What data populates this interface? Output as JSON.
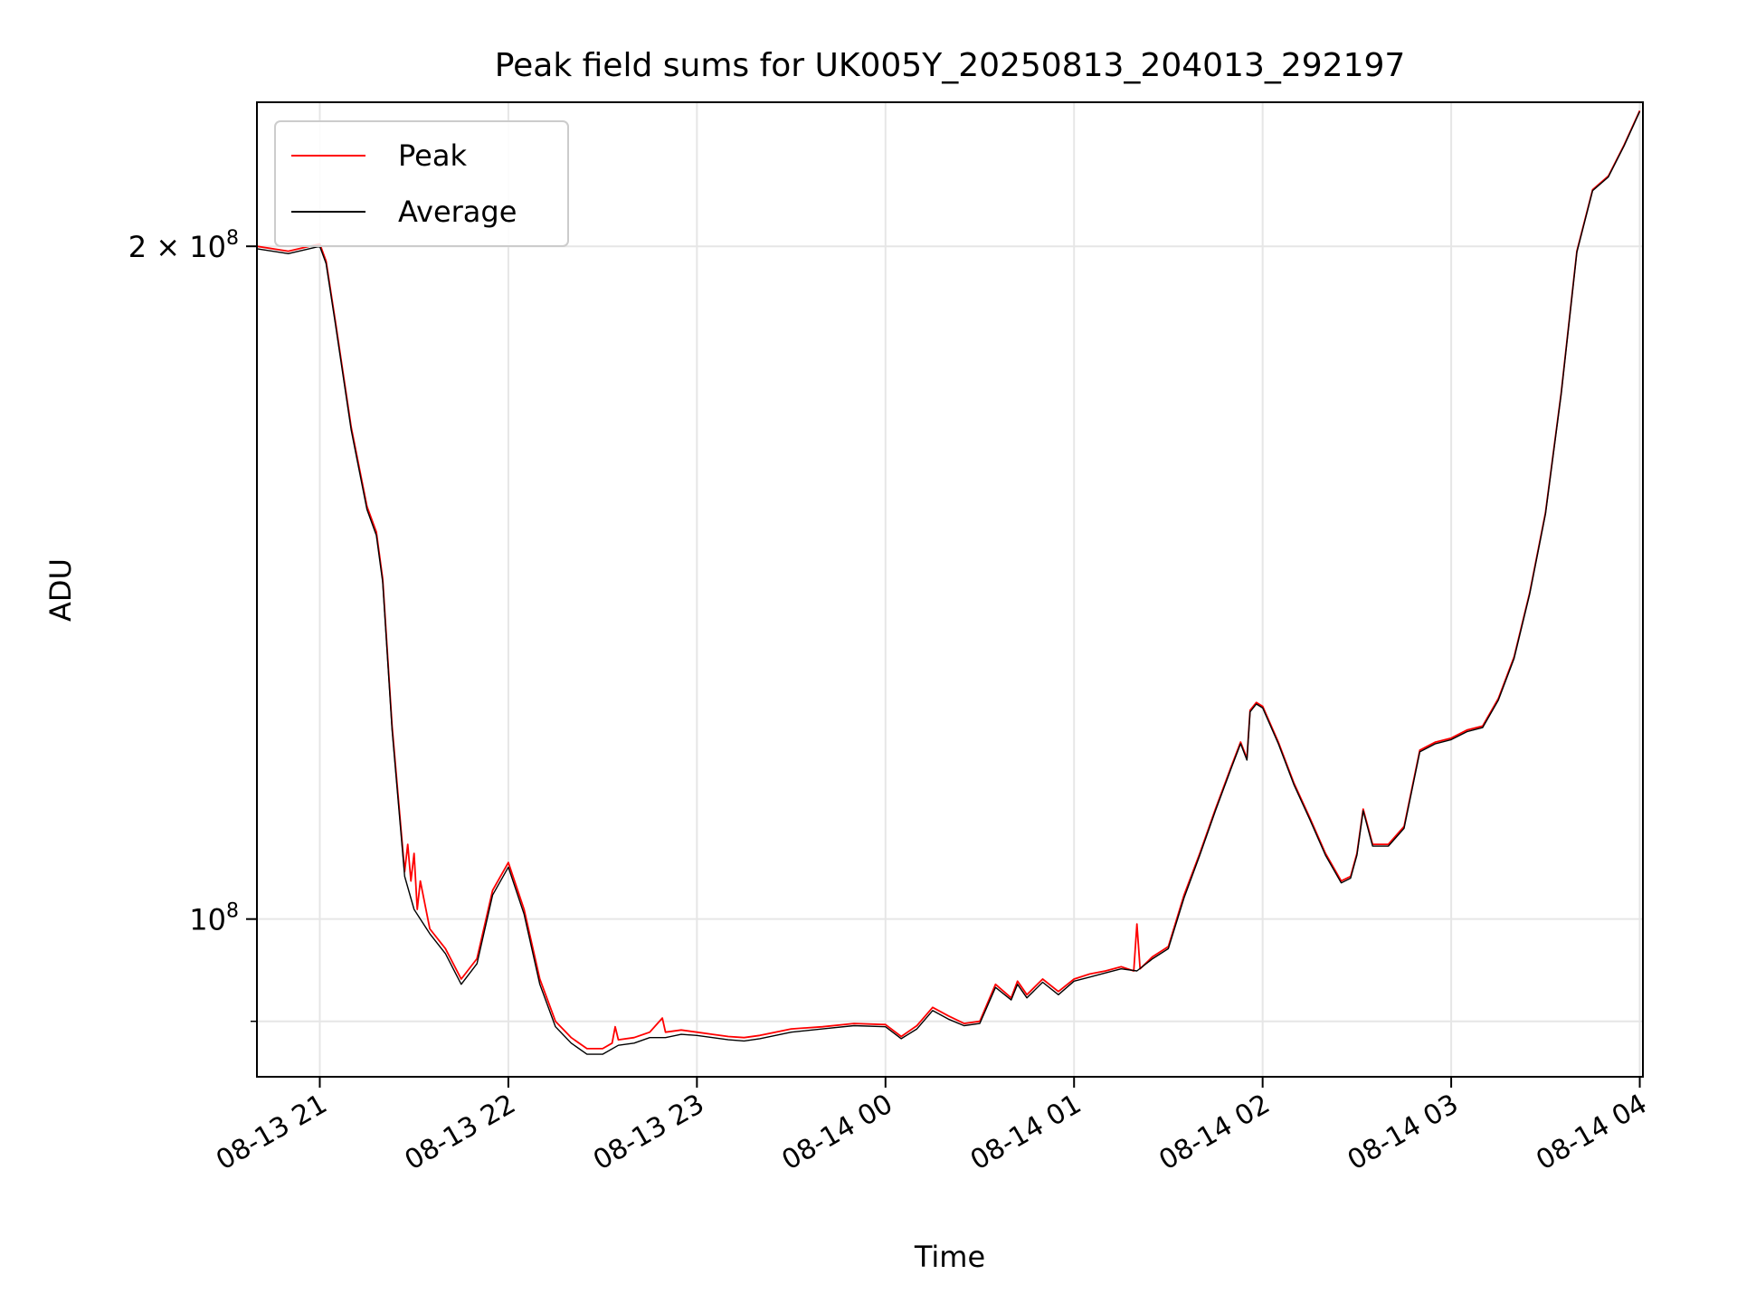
{
  "chart_data": {
    "type": "line",
    "title": "Peak field sums for UK005Y_20250813_204013_292197",
    "xlabel": "Time",
    "ylabel": "ADU",
    "y_scale": "log",
    "xlim": [
      "2025-08-13T20:40",
      "2025-08-14T04:01"
    ],
    "ylim": [
      85000000,
      232000000
    ],
    "grid": true,
    "legend_position": "top-left",
    "x_tick_labels": [
      "08-13 21",
      "08-13 22",
      "08-13 23",
      "08-14 00",
      "08-14 01",
      "08-14 02",
      "08-14 03",
      "08-14 04"
    ],
    "x_tick_values": [
      "2025-08-13T21:00",
      "2025-08-13T22:00",
      "2025-08-13T23:00",
      "2025-08-14T00:00",
      "2025-08-14T01:00",
      "2025-08-14T02:00",
      "2025-08-14T03:00",
      "2025-08-14T04:00"
    ],
    "y_ticks": [
      {
        "value": 200000000,
        "mantissa": "2",
        "times": "×",
        "base": "10",
        "exp": "8"
      },
      {
        "value": 100000000,
        "mantissa": "",
        "times": "",
        "base": "10",
        "exp": "8"
      }
    ],
    "y_minor_ticks": [
      90000000
    ],
    "series": [
      {
        "name": "Peak",
        "color": "#ff0000",
        "x": [
          "2025-08-13T20:40",
          "2025-08-13T20:50",
          "2025-08-13T21:00",
          "2025-08-13T21:02",
          "2025-08-13T21:05",
          "2025-08-13T21:10",
          "2025-08-13T21:15",
          "2025-08-13T21:18",
          "2025-08-13T21:20",
          "2025-08-13T21:23",
          "2025-08-13T21:27",
          "2025-08-13T21:28",
          "2025-08-13T21:29",
          "2025-08-13T21:30",
          "2025-08-13T21:31",
          "2025-08-13T21:32",
          "2025-08-13T21:35",
          "2025-08-13T21:40",
          "2025-08-13T21:45",
          "2025-08-13T21:50",
          "2025-08-13T21:55",
          "2025-08-13T22:00",
          "2025-08-13T22:05",
          "2025-08-13T22:10",
          "2025-08-13T22:15",
          "2025-08-13T22:20",
          "2025-08-13T22:25",
          "2025-08-13T22:30",
          "2025-08-13T22:33",
          "2025-08-13T22:34",
          "2025-08-13T22:35",
          "2025-08-13T22:40",
          "2025-08-13T22:45",
          "2025-08-13T22:49",
          "2025-08-13T22:50",
          "2025-08-13T22:55",
          "2025-08-13T23:00",
          "2025-08-13T23:05",
          "2025-08-13T23:10",
          "2025-08-13T23:15",
          "2025-08-13T23:20",
          "2025-08-13T23:30",
          "2025-08-13T23:40",
          "2025-08-13T23:50",
          "2025-08-14T00:00",
          "2025-08-14T00:05",
          "2025-08-14T00:10",
          "2025-08-14T00:15",
          "2025-08-14T00:20",
          "2025-08-14T00:25",
          "2025-08-14T00:30",
          "2025-08-14T00:35",
          "2025-08-14T00:40",
          "2025-08-14T00:42",
          "2025-08-14T00:45",
          "2025-08-14T00:50",
          "2025-08-14T00:55",
          "2025-08-14T01:00",
          "2025-08-14T01:05",
          "2025-08-14T01:10",
          "2025-08-14T01:15",
          "2025-08-14T01:19",
          "2025-08-14T01:20",
          "2025-08-14T01:21",
          "2025-08-14T01:25",
          "2025-08-14T01:30",
          "2025-08-14T01:35",
          "2025-08-14T01:40",
          "2025-08-14T01:45",
          "2025-08-14T01:50",
          "2025-08-14T01:53",
          "2025-08-14T01:55",
          "2025-08-14T01:56",
          "2025-08-14T01:58",
          "2025-08-14T02:00",
          "2025-08-14T02:05",
          "2025-08-14T02:10",
          "2025-08-14T02:15",
          "2025-08-14T02:20",
          "2025-08-14T02:25",
          "2025-08-14T02:28",
          "2025-08-14T02:30",
          "2025-08-14T02:32",
          "2025-08-14T02:35",
          "2025-08-14T02:40",
          "2025-08-14T02:45",
          "2025-08-14T02:50",
          "2025-08-14T02:55",
          "2025-08-14T03:00",
          "2025-08-14T03:05",
          "2025-08-14T03:10",
          "2025-08-14T03:15",
          "2025-08-14T03:20",
          "2025-08-14T03:25",
          "2025-08-14T03:30",
          "2025-08-14T03:35",
          "2025-08-14T03:40",
          "2025-08-14T03:45",
          "2025-08-14T03:50",
          "2025-08-14T03:55",
          "2025-08-14T04:00"
        ],
        "values": [
          200000000,
          199000000,
          200500000,
          197000000,
          185000000,
          166000000,
          153000000,
          149000000,
          142000000,
          122000000,
          105000000,
          108000000,
          104000000,
          107000000,
          101000000,
          104000000,
          99000000,
          97000000,
          94000000,
          96000000,
          103000000,
          106000000,
          101000000,
          94000000,
          90000000,
          88500000,
          87500000,
          87500000,
          88000000,
          89500000,
          88300000,
          88500000,
          89000000,
          90300000,
          89000000,
          89200000,
          89000000,
          88800000,
          88600000,
          88500000,
          88700000,
          89300000,
          89500000,
          89800000,
          89700000,
          88600000,
          89600000,
          91300000,
          90500000,
          89800000,
          90000000,
          93500000,
          92200000,
          93800000,
          92500000,
          94000000,
          92800000,
          94000000,
          94500000,
          94800000,
          95200000,
          94800000,
          99500000,
          95000000,
          96200000,
          97200000,
          102500000,
          107000000,
          112000000,
          117000000,
          120000000,
          118000000,
          124000000,
          125000000,
          124500000,
          120000000,
          115000000,
          111000000,
          107000000,
          104000000,
          104500000,
          107000000,
          112000000,
          108000000,
          108000000,
          110000000,
          119000000,
          120000000,
          120500000,
          121500000,
          122000000,
          125500000,
          131000000,
          140000000,
          152000000,
          172000000,
          199000000,
          212000000,
          215000000,
          222000000,
          230000000
        ]
      },
      {
        "name": "Average",
        "color": "#000000",
        "x": [
          "2025-08-13T20:40",
          "2025-08-13T20:50",
          "2025-08-13T21:00",
          "2025-08-13T21:02",
          "2025-08-13T21:05",
          "2025-08-13T21:10",
          "2025-08-13T21:15",
          "2025-08-13T21:18",
          "2025-08-13T21:20",
          "2025-08-13T21:23",
          "2025-08-13T21:27",
          "2025-08-13T21:30",
          "2025-08-13T21:35",
          "2025-08-13T21:40",
          "2025-08-13T21:45",
          "2025-08-13T21:50",
          "2025-08-13T21:55",
          "2025-08-13T22:00",
          "2025-08-13T22:05",
          "2025-08-13T22:10",
          "2025-08-13T22:15",
          "2025-08-13T22:20",
          "2025-08-13T22:25",
          "2025-08-13T22:30",
          "2025-08-13T22:35",
          "2025-08-13T22:40",
          "2025-08-13T22:45",
          "2025-08-13T22:50",
          "2025-08-13T22:55",
          "2025-08-13T23:00",
          "2025-08-13T23:05",
          "2025-08-13T23:10",
          "2025-08-13T23:15",
          "2025-08-13T23:20",
          "2025-08-13T23:30",
          "2025-08-13T23:40",
          "2025-08-13T23:50",
          "2025-08-14T00:00",
          "2025-08-14T00:05",
          "2025-08-14T00:10",
          "2025-08-14T00:15",
          "2025-08-14T00:20",
          "2025-08-14T00:25",
          "2025-08-14T00:30",
          "2025-08-14T00:35",
          "2025-08-14T00:40",
          "2025-08-14T00:42",
          "2025-08-14T00:45",
          "2025-08-14T00:50",
          "2025-08-14T00:55",
          "2025-08-14T01:00",
          "2025-08-14T01:05",
          "2025-08-14T01:10",
          "2025-08-14T01:15",
          "2025-08-14T01:20",
          "2025-08-14T01:25",
          "2025-08-14T01:30",
          "2025-08-14T01:35",
          "2025-08-14T01:40",
          "2025-08-14T01:45",
          "2025-08-14T01:50",
          "2025-08-14T01:53",
          "2025-08-14T01:55",
          "2025-08-14T01:56",
          "2025-08-14T01:58",
          "2025-08-14T02:00",
          "2025-08-14T02:05",
          "2025-08-14T02:10",
          "2025-08-14T02:15",
          "2025-08-14T02:20",
          "2025-08-14T02:25",
          "2025-08-14T02:28",
          "2025-08-14T02:30",
          "2025-08-14T02:32",
          "2025-08-14T02:35",
          "2025-08-14T02:40",
          "2025-08-14T02:45",
          "2025-08-14T02:50",
          "2025-08-14T02:55",
          "2025-08-14T03:00",
          "2025-08-14T03:05",
          "2025-08-14T03:10",
          "2025-08-14T03:15",
          "2025-08-14T03:20",
          "2025-08-14T03:25",
          "2025-08-14T03:30",
          "2025-08-14T03:35",
          "2025-08-14T03:40",
          "2025-08-14T03:45",
          "2025-08-14T03:50",
          "2025-08-14T03:55",
          "2025-08-14T04:00"
        ],
        "values": [
          199500000,
          198500000,
          200000000,
          196500000,
          184500000,
          165500000,
          152500000,
          148500000,
          141500000,
          121500000,
          104500000,
          101000000,
          98500000,
          96500000,
          93500000,
          95500000,
          102500000,
          105500000,
          100500000,
          93500000,
          89500000,
          88000000,
          87000000,
          87000000,
          87800000,
          88000000,
          88500000,
          88500000,
          88800000,
          88700000,
          88500000,
          88300000,
          88200000,
          88400000,
          89000000,
          89300000,
          89600000,
          89500000,
          88400000,
          89300000,
          91000000,
          90200000,
          89600000,
          89800000,
          93200000,
          92000000,
          93500000,
          92200000,
          93700000,
          92500000,
          93800000,
          94200000,
          94600000,
          95000000,
          94800000,
          96000000,
          97000000,
          102200000,
          106800000,
          111800000,
          116800000,
          119800000,
          117800000,
          123800000,
          124800000,
          124300000,
          119800000,
          114800000,
          110800000,
          106800000,
          103800000,
          104300000,
          106800000,
          111800000,
          107800000,
          107800000,
          109800000,
          118800000,
          119800000,
          120300000,
          121300000,
          121800000,
          125300000,
          130800000,
          139800000,
          151800000,
          171800000,
          198800000,
          211800000,
          214800000,
          221800000,
          229800000
        ]
      }
    ]
  }
}
